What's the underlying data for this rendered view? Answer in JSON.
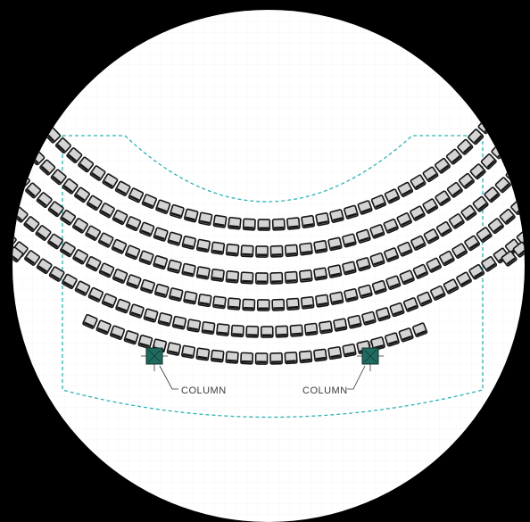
{
  "diagram": {
    "labels": {
      "column_left": "COLUMN",
      "column_right": "COLUMN"
    },
    "colors": {
      "background": "#000000",
      "circle": "#ffffff",
      "grid": "#ececec",
      "boundary": "#2bb3b3",
      "seat_fill": "#d4d4d4",
      "seat_stroke": "#151515",
      "column_fill": "#1f6b60",
      "leader_line": "#333333"
    }
  }
}
